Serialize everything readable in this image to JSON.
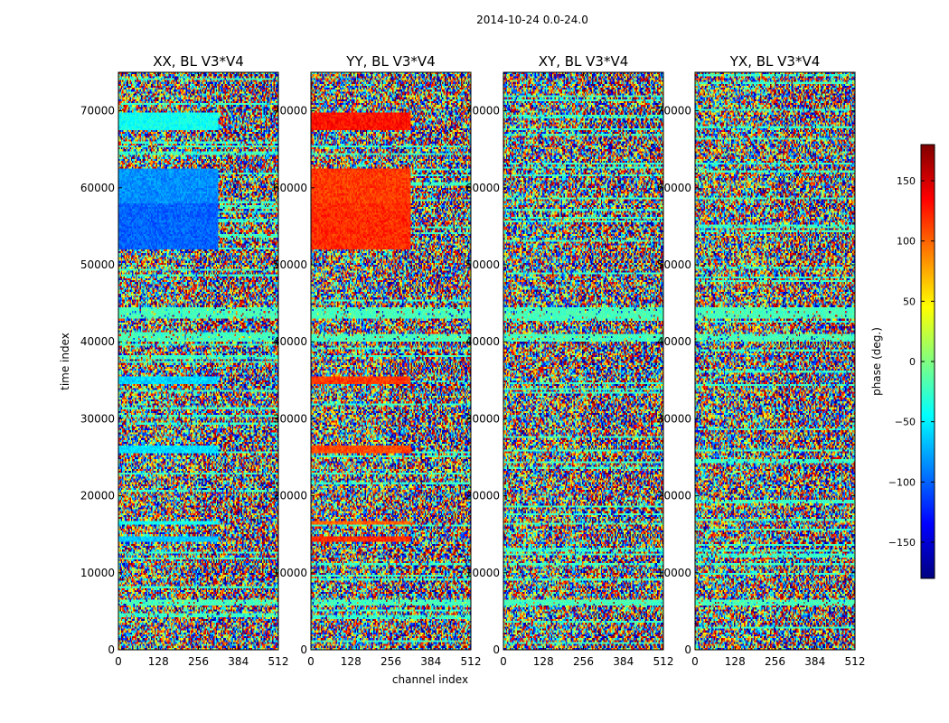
{
  "figure": {
    "suptitle": "2014-10-24 0.0-24.0",
    "xlabel": "channel index",
    "ylabel": "time index"
  },
  "chart_data": {
    "type": "heatmap",
    "colormap": "jet",
    "x_ticks": [
      0,
      128,
      256,
      384,
      512
    ],
    "y_ticks": [
      0,
      10000,
      20000,
      30000,
      40000,
      50000,
      60000,
      70000
    ],
    "xlim": [
      0,
      512
    ],
    "ylim": [
      0,
      75000
    ],
    "panels": [
      {
        "title": "XX, BL V3*V4",
        "flag_bands": [
          [
            58000,
            62500,
            -85
          ],
          [
            52000,
            58000,
            -100
          ],
          [
            67500,
            69800,
            -40
          ],
          [
            34500,
            35500,
            -60
          ],
          [
            25500,
            26500,
            -55
          ],
          [
            14000,
            14800,
            -65
          ],
          [
            16200,
            16800,
            -40
          ]
        ],
        "rfi_bands": [
          [
            43000,
            44500,
            -20
          ],
          [
            5800,
            6600,
            -20
          ],
          [
            40000,
            41000,
            -20
          ]
        ]
      },
      {
        "title": "YY, BL V3*V4",
        "flag_bands": [
          [
            58000,
            62500,
            115
          ],
          [
            52000,
            58000,
            120
          ],
          [
            67500,
            69800,
            130
          ],
          [
            34500,
            35500,
            115
          ],
          [
            25500,
            26500,
            110
          ],
          [
            14000,
            14800,
            120
          ],
          [
            16200,
            16800,
            100
          ]
        ],
        "rfi_bands": [
          [
            43000,
            44500,
            -20
          ],
          [
            5800,
            6600,
            -20
          ],
          [
            40000,
            41000,
            -20
          ]
        ]
      },
      {
        "title": "XY, BL V3*V4",
        "flag_bands": [],
        "rfi_bands": [
          [
            43000,
            44500,
            -20
          ],
          [
            5800,
            6600,
            -20
          ],
          [
            40000,
            41000,
            -20
          ]
        ]
      },
      {
        "title": "YX, BL V3*V4",
        "flag_bands": [],
        "rfi_bands": [
          [
            43000,
            44500,
            -20
          ],
          [
            5800,
            6600,
            -20
          ],
          [
            40000,
            41000,
            -20
          ]
        ]
      }
    ],
    "colorbar": {
      "label": "phase (deg.)",
      "range": [
        -180,
        180
      ],
      "ticks": [
        -150,
        -100,
        -50,
        0,
        50,
        100,
        150
      ],
      "tick_labels": [
        "−150",
        "−100",
        "−50",
        "0",
        "50",
        "100",
        "150"
      ]
    }
  }
}
